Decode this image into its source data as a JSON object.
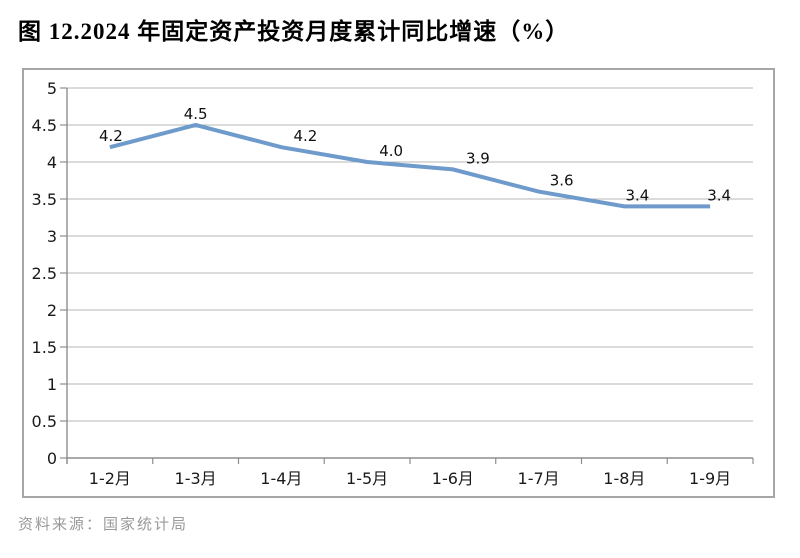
{
  "title": "图 12.2024 年固定资产投资月度累计同比增速（%）",
  "source": "资料来源：国家统计局",
  "colors": {
    "line": "#6E9BCB",
    "gridline": "#B7B7B7",
    "axis": "#8E8E8E",
    "tick_label": "#1A1A1A",
    "data_label": "#111111",
    "border": "#A6A6A6",
    "source_text": "#9A9A9A"
  },
  "chart_data": {
    "type": "line",
    "title": "图 12.2024 年固定资产投资月度累计同比增速（%）",
    "categories": [
      "1-2月",
      "1-3月",
      "1-4月",
      "1-5月",
      "1-6月",
      "1-7月",
      "1-8月",
      "1-9月"
    ],
    "values": [
      4.2,
      4.5,
      4.2,
      4.0,
      3.9,
      3.6,
      3.4,
      3.4
    ],
    "value_labels": [
      "4.2",
      "4.5",
      "4.2",
      "4.0",
      "3.9",
      "3.6",
      "3.4",
      "3.4"
    ],
    "xlabel": "",
    "ylabel": "",
    "ylim": [
      0,
      5
    ],
    "ytick_step": 0.5,
    "grid": true,
    "legend": false,
    "legend_position": "none",
    "label_dx": [
      1,
      0,
      24,
      24,
      25,
      23,
      13,
      9
    ]
  }
}
